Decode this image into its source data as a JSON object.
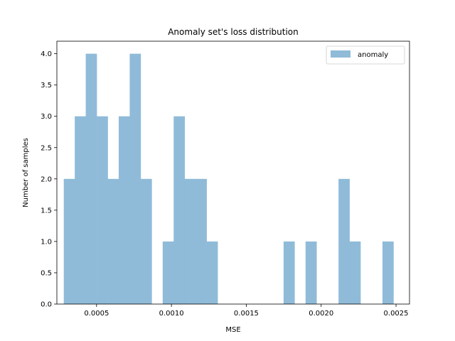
{
  "chart_data": {
    "type": "bar",
    "title": "Anomaly set's loss distribution",
    "xlabel": "MSE",
    "ylabel": "Number of samples",
    "xlim": [
      0.000235,
      0.00259
    ],
    "ylim": [
      0,
      4.2
    ],
    "xticks": [
      0.0005,
      0.001,
      0.0015,
      0.002,
      0.0025
    ],
    "xtick_labels": [
      "0.0005",
      "0.0010",
      "0.0015",
      "0.0020",
      "0.0025"
    ],
    "yticks": [
      0,
      0.5,
      1,
      1.5,
      2,
      2.5,
      3,
      3.5,
      4
    ],
    "ytick_labels": [
      "0.0",
      "0.5",
      "1.0",
      "1.5",
      "2.0",
      "2.5",
      "3.0",
      "3.5",
      "4.0"
    ],
    "bin_start": 0.000281,
    "bin_width": 7.34e-05,
    "bins": 30,
    "series": [
      {
        "name": "anomaly",
        "color": "#8fbbd9",
        "values": [
          2,
          3,
          4,
          3,
          2,
          3,
          4,
          2,
          0,
          1,
          3,
          2,
          2,
          1,
          0,
          0,
          0,
          0,
          0,
          0,
          1,
          0,
          1,
          0,
          0,
          2,
          1,
          0,
          0,
          1
        ]
      }
    ],
    "grid": false,
    "legend": "top-right"
  }
}
